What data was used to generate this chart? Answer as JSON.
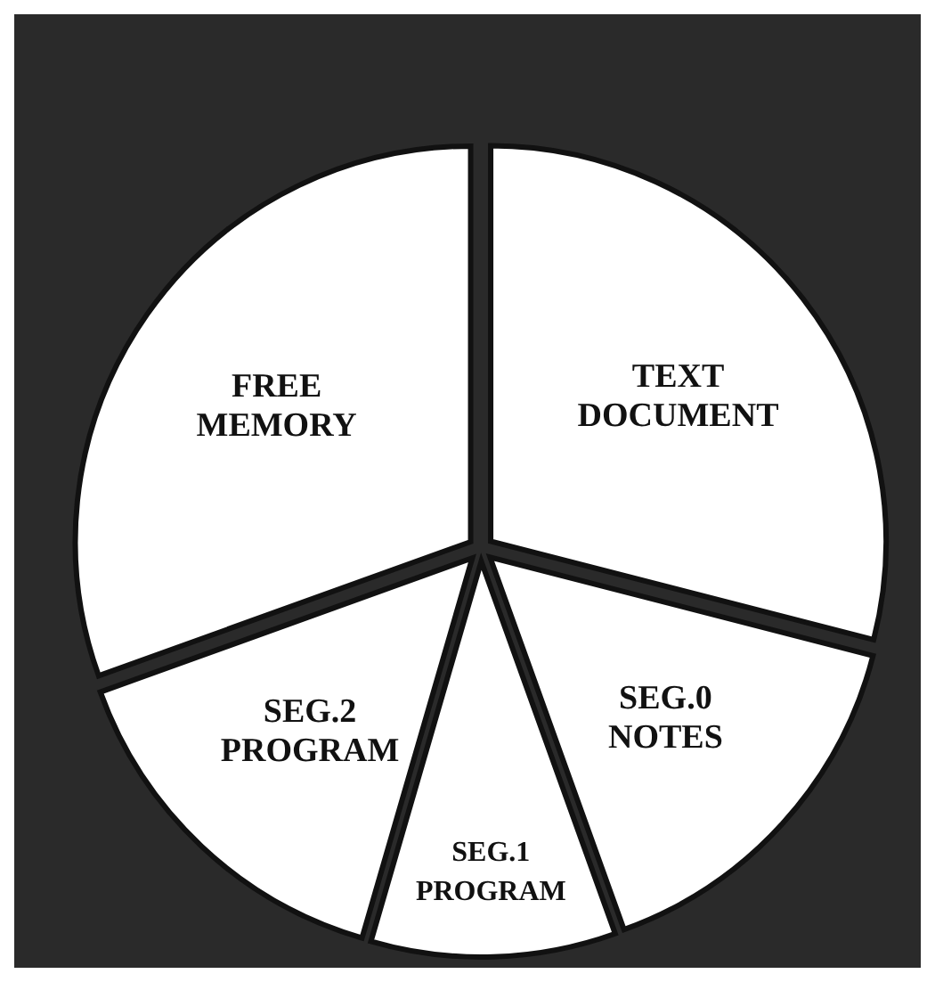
{
  "chart_data": {
    "type": "pie",
    "categories": [
      "TEXT DOCUMENT",
      "SEG.0 NOTES",
      "SEG.1 PROGRAM",
      "SEG.2 PROGRAM",
      "FREE MEMORY"
    ],
    "values": [
      29,
      15.5,
      10,
      15,
      30.5
    ],
    "colors": [
      "#ffffff",
      "#ffffff",
      "#ffffff",
      "#ffffff",
      "#ffffff"
    ]
  }
}
